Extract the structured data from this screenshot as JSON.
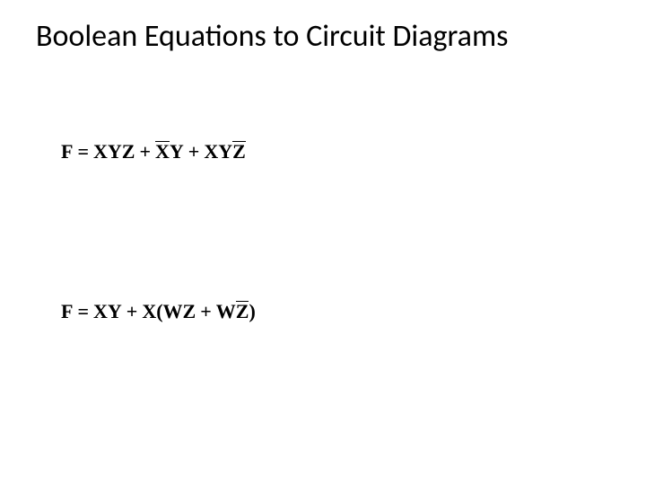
{
  "slide": {
    "title": "Boolean Equations to Circuit Diagrams",
    "background_color": "#ffffff",
    "text_color": "#000000",
    "title_fontsize": 34,
    "equation_fontsize": 22,
    "equation_font": "Times New Roman",
    "equations": [
      {
        "lhs": "F",
        "plain": "F = XYZ + X'Y + XYZ'",
        "terms": [
          {
            "text": "XYZ",
            "overbar": false
          },
          {
            "text": "X",
            "overbar": true,
            "continue": true
          },
          {
            "text": "Y",
            "overbar": false
          },
          {
            "text": "XY",
            "overbar": false,
            "continue": true
          },
          {
            "text": "Z",
            "overbar": true
          }
        ]
      },
      {
        "lhs": "F",
        "plain": "F = XY + X(WZ + WZ')",
        "open_paren_after_term": 2,
        "terms": [
          {
            "text": "XY",
            "overbar": false
          },
          {
            "text": "X(WZ",
            "overbar": false
          },
          {
            "text": "W",
            "overbar": false,
            "continue": true
          },
          {
            "text": "Z",
            "overbar": true
          },
          {
            "text": ")",
            "overbar": false,
            "suffix": true
          }
        ]
      }
    ]
  },
  "labels": {
    "F": "F",
    "eq": "=",
    "plus": "+",
    "XYZ": "XYZ",
    "X": "X",
    "Y": "Y",
    "XY": "XY",
    "Z": "Z",
    "Xparen": "X(WZ",
    "W": "W",
    "closeparen": ")"
  }
}
